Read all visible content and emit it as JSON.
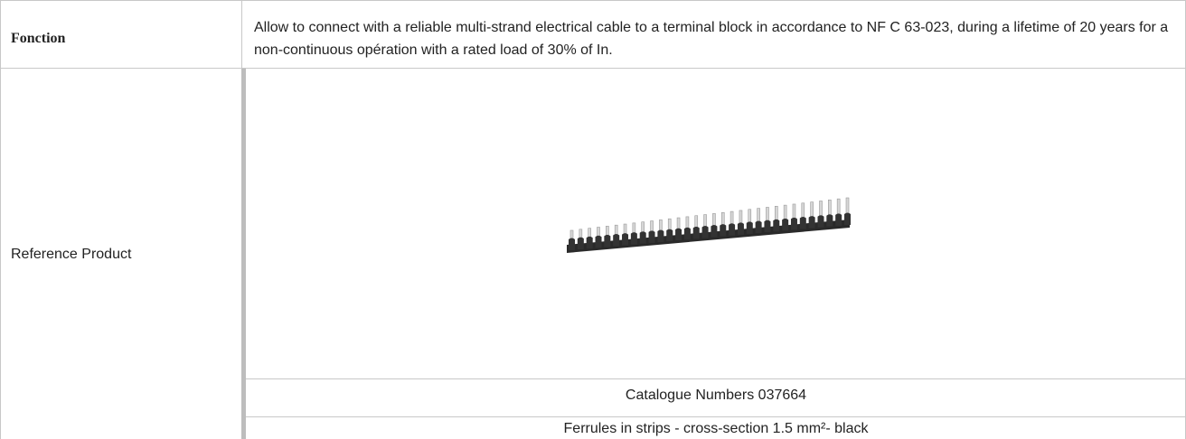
{
  "table": {
    "rows": [
      {
        "label": "Fonction",
        "text": "Allow to connect with a reliable multi-strand electrical cable to a terminal block in accordance to NF C 63-023, during a lifetime of 20 years for a non-continuous opération with a rated load of 30% of In."
      },
      {
        "label": "Reference Product",
        "catalogue": "Catalogue Numbers 037664",
        "description": "Ferrules in strips - cross-section 1.5 mm²- black"
      }
    ]
  }
}
